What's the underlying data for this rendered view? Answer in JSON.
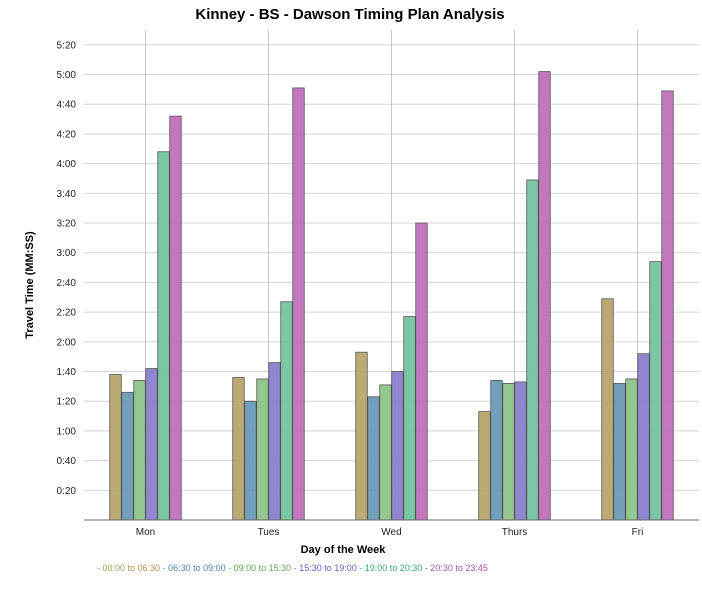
{
  "chart_data": {
    "type": "bar",
    "title": "Kinney - BS - Dawson Timing Plan Analysis",
    "xlabel": "Day of the Week",
    "ylabel": "Travel Time (MM:SS)",
    "categories": [
      "Mon",
      "Tues",
      "Wed",
      "Thurs",
      "Fri"
    ],
    "y_ticks": [
      "0:20",
      "0:40",
      "1:00",
      "1:20",
      "1:40",
      "2:00",
      "2:20",
      "2:40",
      "3:00",
      "3:20",
      "3:40",
      "4:00",
      "4:20",
      "4:40",
      "5:00",
      "5:20"
    ],
    "ylim": [
      0,
      330
    ],
    "y_unit": "seconds",
    "grid": true,
    "legend_position": "bottom",
    "series": [
      {
        "name": "00:00 to 06:30",
        "color": "#b8a56e",
        "values": [
          98,
          96,
          113,
          73,
          149
        ]
      },
      {
        "name": "06:30 to 09:00",
        "color": "#6a9ab5",
        "values": [
          86,
          80,
          83,
          94,
          92
        ]
      },
      {
        "name": "09:00 to 15:30",
        "color": "#8ec48a",
        "values": [
          94,
          95,
          91,
          92,
          95
        ]
      },
      {
        "name": "15:30 to 19:00",
        "color": "#8a7fcc",
        "values": [
          102,
          106,
          100,
          93,
          112
        ]
      },
      {
        "name": "19:00 to 20:30",
        "color": "#74c4a0",
        "values": [
          248,
          147,
          137,
          229,
          174
        ]
      },
      {
        "name": "20:30 to 23:45",
        "color": "#c070bc",
        "values": [
          272,
          291,
          200,
          302,
          289
        ]
      }
    ],
    "legend_text_colors": [
      "#a8954e",
      "#4a86a8",
      "#5aa84e",
      "#6a5cc0",
      "#36a878",
      "#a850a4"
    ]
  }
}
